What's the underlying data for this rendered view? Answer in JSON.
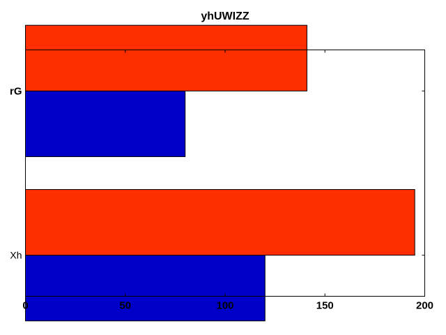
{
  "chart_data": {
    "type": "bar",
    "orientation": "horizontal",
    "title": "yhUWIZZ",
    "xlabel": "",
    "ylabel": "",
    "xlim": [
      0,
      200
    ],
    "x_ticks": [
      0,
      50,
      100,
      150,
      200
    ],
    "categories": [
      "Xh",
      "rG"
    ],
    "category_label_bold": [
      false,
      true
    ],
    "series": [
      {
        "color": "#0000c8",
        "values": [
          120,
          80
        ]
      },
      {
        "color": "#ff2e00",
        "values": [
          195,
          141
        ]
      }
    ],
    "grid": false,
    "legend": "none"
  }
}
